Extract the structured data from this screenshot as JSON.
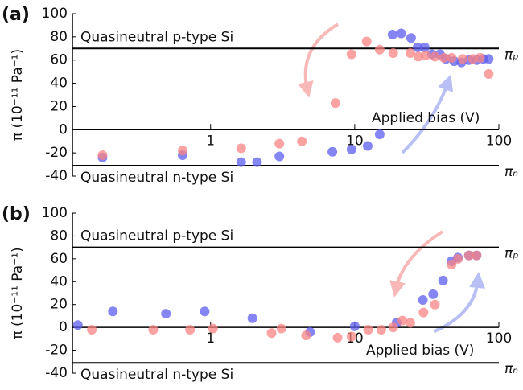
{
  "chart_data": [
    {
      "type": "scatter",
      "panel_label": "(a)",
      "ylabel": "π (10⁻¹¹ Pa⁻¹)",
      "log_x": true,
      "xlim": [
        0.11,
        100
      ],
      "xticks": [
        1,
        10,
        100
      ],
      "ylim": [
        -40,
        100
      ],
      "yticks": [
        -40,
        -20,
        0,
        20,
        40,
        60,
        80,
        100
      ],
      "hlines": [
        {
          "value": 70,
          "label": "Quasineutral p-type Si",
          "end_label": "πₚ"
        },
        {
          "value": -31,
          "label": "Quasineutral n-type Si",
          "end_label": "πₙ"
        }
      ],
      "annotation": "Applied bias (V)",
      "series": [
        {
          "name": "blue",
          "color": "#5c5cf0",
          "x": [
            0.178,
            0.64,
            1.63,
            2.1,
            3.0,
            7.0,
            9.5,
            12.3,
            14.9,
            18.3,
            21,
            24.6,
            27.3,
            30.6,
            34.4,
            39,
            43,
            49,
            55,
            62,
            70,
            78,
            85
          ],
          "values": [
            -24,
            -22,
            -28,
            -28,
            -23,
            -19,
            -17,
            -14,
            -4,
            82,
            83,
            79,
            71,
            71,
            65,
            65,
            61,
            59,
            58,
            60,
            60,
            61,
            61
          ]
        },
        {
          "name": "red",
          "color": "#f98383",
          "x": [
            0.178,
            0.64,
            1.63,
            3.0,
            4.3,
            7.35,
            9.5,
            12.1,
            14.9,
            18.5,
            24.3,
            27.6,
            31,
            36,
            41.5,
            47,
            56,
            66,
            74,
            85
          ],
          "values": [
            -22,
            -18,
            -16,
            -12,
            -10,
            23,
            65,
            76,
            69,
            66,
            66,
            63,
            64,
            63,
            62,
            62,
            61,
            61,
            62,
            48
          ]
        }
      ]
    },
    {
      "type": "scatter",
      "panel_label": "(b)",
      "ylabel": "π (10⁻¹¹ Pa⁻¹)",
      "log_x": true,
      "xlim": [
        0.11,
        100
      ],
      "xticks": [
        1,
        10,
        100
      ],
      "ylim": [
        -40,
        100
      ],
      "yticks": [
        -40,
        -20,
        0,
        20,
        40,
        60,
        80,
        100
      ],
      "hlines": [
        {
          "value": 70,
          "label": "Quasineutral p-type Si",
          "end_label": "πₚ"
        },
        {
          "value": -31,
          "label": "Quasineutral n-type Si",
          "end_label": "πₙ"
        }
      ],
      "annotation": "Applied bias (V)",
      "series": [
        {
          "name": "blue",
          "color": "#5c5cf0",
          "x": [
            0.12,
            0.21,
            0.49,
            0.91,
            1.95,
            4.9,
            10,
            19.5,
            29.7,
            35,
            41,
            47,
            52,
            62,
            70
          ],
          "values": [
            2,
            14,
            12,
            14,
            8,
            -4,
            1,
            4,
            24,
            29,
            41,
            58,
            61,
            63,
            63
          ]
        },
        {
          "name": "red",
          "color": "#f98383",
          "x": [
            0.15,
            0.4,
            0.72,
            1.04,
            2.65,
            3.1,
            4.6,
            7.6,
            9.5,
            12.4,
            15.3,
            18.5,
            21.4,
            24.3,
            30,
            36,
            47,
            52,
            62,
            70
          ],
          "values": [
            -2,
            -2,
            -2,
            -1,
            -5,
            -1,
            -7,
            -9,
            -8,
            -2,
            -2,
            0,
            6,
            4,
            13,
            20,
            55,
            60,
            63,
            63
          ]
        }
      ]
    }
  ]
}
